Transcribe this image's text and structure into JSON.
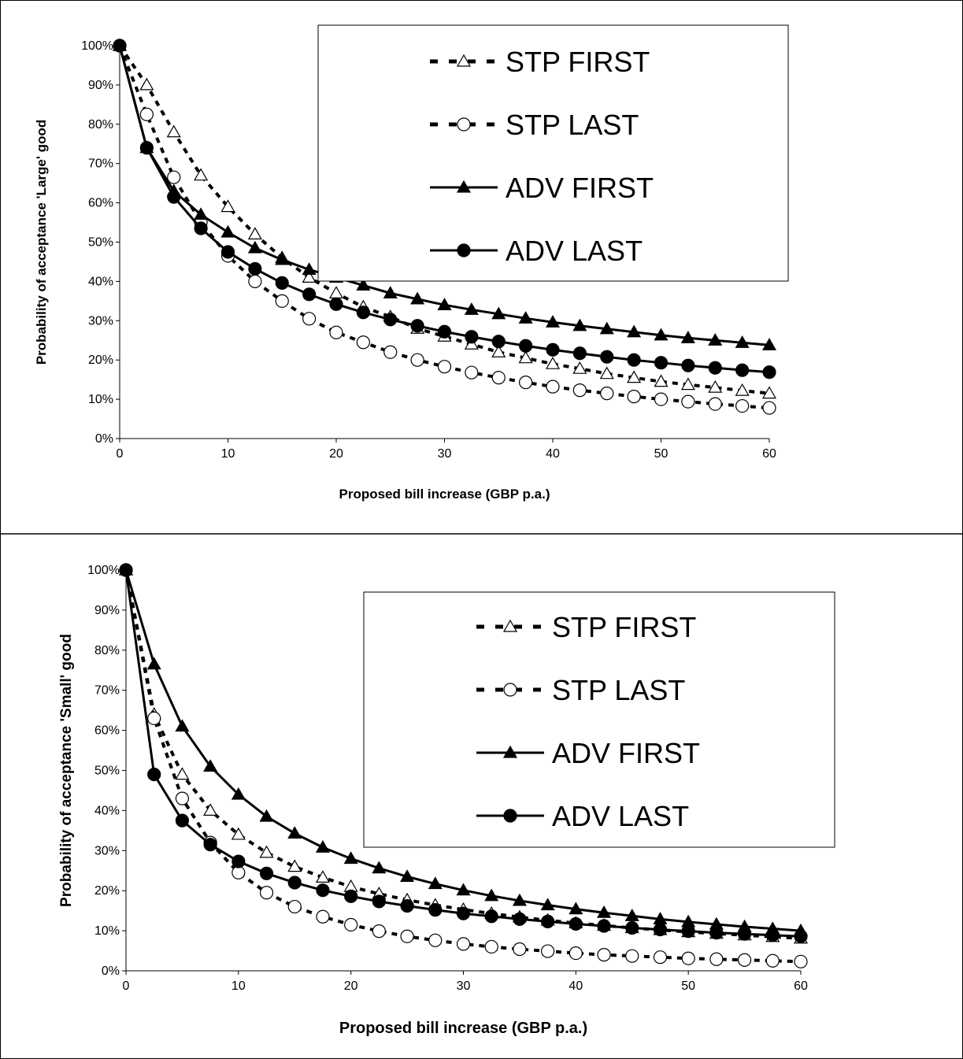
{
  "chart_data": [
    {
      "type": "line",
      "xlabel": "Proposed bill increase (GBP p.a.)",
      "ylabel": "Probability of acceptance 'Large' good",
      "xlim": [
        0,
        60
      ],
      "ylim": [
        0,
        100
      ],
      "y_unit": "%",
      "x_ticks": [
        0,
        10,
        20,
        30,
        40,
        50,
        60
      ],
      "y_ticks": [
        0,
        10,
        20,
        30,
        40,
        50,
        60,
        70,
        80,
        90,
        100
      ],
      "grid": false,
      "legend_position": "top-right",
      "x": [
        0,
        2.5,
        5,
        7.5,
        10,
        12.5,
        15,
        17.5,
        20,
        22.5,
        25,
        27.5,
        30,
        32.5,
        35,
        37.5,
        40,
        42.5,
        45,
        47.5,
        50,
        52.5,
        55,
        57.5,
        60
      ],
      "series": [
        {
          "name": "STP FIRST",
          "style": "dashed",
          "marker": "open-triangle",
          "values": [
            100,
            90,
            78,
            67,
            59,
            52,
            46,
            41,
            37,
            33.5,
            31,
            28,
            26,
            24,
            22,
            20.5,
            19,
            17.8,
            16.5,
            15.5,
            14.5,
            13.7,
            13,
            12.2,
            11.5
          ]
        },
        {
          "name": "STP LAST",
          "style": "dashed",
          "marker": "open-circle",
          "values": [
            100,
            82.5,
            66.5,
            55,
            46.5,
            40,
            35,
            30.5,
            27,
            24.5,
            22,
            20,
            18.3,
            16.8,
            15.5,
            14.3,
            13.2,
            12.3,
            11.5,
            10.7,
            10,
            9.4,
            8.8,
            8.3,
            7.8
          ]
        },
        {
          "name": "ADV FIRST",
          "style": "solid",
          "marker": "filled-triangle",
          "values": [
            100,
            74,
            63,
            57,
            52.5,
            48.5,
            45.5,
            43,
            41,
            39,
            37,
            35.5,
            34,
            32.8,
            31.7,
            30.6,
            29.6,
            28.7,
            27.9,
            27.1,
            26.3,
            25.6,
            25,
            24.4,
            23.8
          ]
        },
        {
          "name": "ADV LAST",
          "style": "solid",
          "marker": "filled-circle",
          "values": [
            100,
            74,
            61.5,
            53.5,
            47.5,
            43.2,
            39.6,
            36.7,
            34.2,
            32.1,
            30.3,
            28.7,
            27.2,
            25.9,
            24.7,
            23.6,
            22.6,
            21.7,
            20.8,
            20,
            19.3,
            18.6,
            18,
            17.4,
            16.9
          ]
        }
      ]
    },
    {
      "type": "line",
      "xlabel": "Proposed bill increase (GBP p.a.)",
      "ylabel": "Probability of acceptance 'Small' good",
      "xlim": [
        0,
        60
      ],
      "ylim": [
        0,
        100
      ],
      "y_unit": "%",
      "x_ticks": [
        0,
        10,
        20,
        30,
        40,
        50,
        60
      ],
      "y_ticks": [
        0,
        10,
        20,
        30,
        40,
        50,
        60,
        70,
        80,
        90,
        100
      ],
      "grid": false,
      "legend_position": "top-right",
      "x": [
        0,
        2.5,
        5,
        7.5,
        10,
        12.5,
        15,
        17.5,
        20,
        22.5,
        25,
        27.5,
        30,
        32.5,
        35,
        37.5,
        40,
        42.5,
        45,
        47.5,
        50,
        52.5,
        55,
        57.5,
        60
      ],
      "series": [
        {
          "name": "STP FIRST",
          "style": "dashed",
          "marker": "open-triangle",
          "values": [
            100,
            64,
            49,
            40,
            34,
            29.5,
            26,
            23.3,
            21,
            19.2,
            17.7,
            16.4,
            15.3,
            14.3,
            13.4,
            12.6,
            11.9,
            11.3,
            10.7,
            10.2,
            9.7,
            9.3,
            8.9,
            8.5,
            8.1
          ]
        },
        {
          "name": "STP LAST",
          "style": "dashed",
          "marker": "open-circle",
          "values": [
            100,
            63,
            43,
            32,
            24.5,
            19.5,
            16,
            13.5,
            11.5,
            9.9,
            8.6,
            7.6,
            6.7,
            6,
            5.4,
            4.9,
            4.4,
            4,
            3.7,
            3.4,
            3.1,
            2.9,
            2.7,
            2.5,
            2.3
          ]
        },
        {
          "name": "ADV FIRST",
          "style": "solid",
          "marker": "filled-triangle",
          "values": [
            100,
            76.5,
            61,
            51,
            44,
            38.5,
            34.3,
            30.8,
            28,
            25.6,
            23.5,
            21.7,
            20.1,
            18.7,
            17.5,
            16.4,
            15.4,
            14.5,
            13.7,
            12.9,
            12.2,
            11.6,
            11,
            10.5,
            10
          ]
        },
        {
          "name": "ADV LAST",
          "style": "solid",
          "marker": "filled-circle",
          "values": [
            100,
            49,
            37.5,
            31.5,
            27.3,
            24.3,
            22,
            20.1,
            18.6,
            17.3,
            16.2,
            15.2,
            14.3,
            13.6,
            12.9,
            12.3,
            11.7,
            11.2,
            10.7,
            10.3,
            9.9,
            9.5,
            9.2,
            8.9,
            8.6
          ]
        }
      ]
    }
  ]
}
